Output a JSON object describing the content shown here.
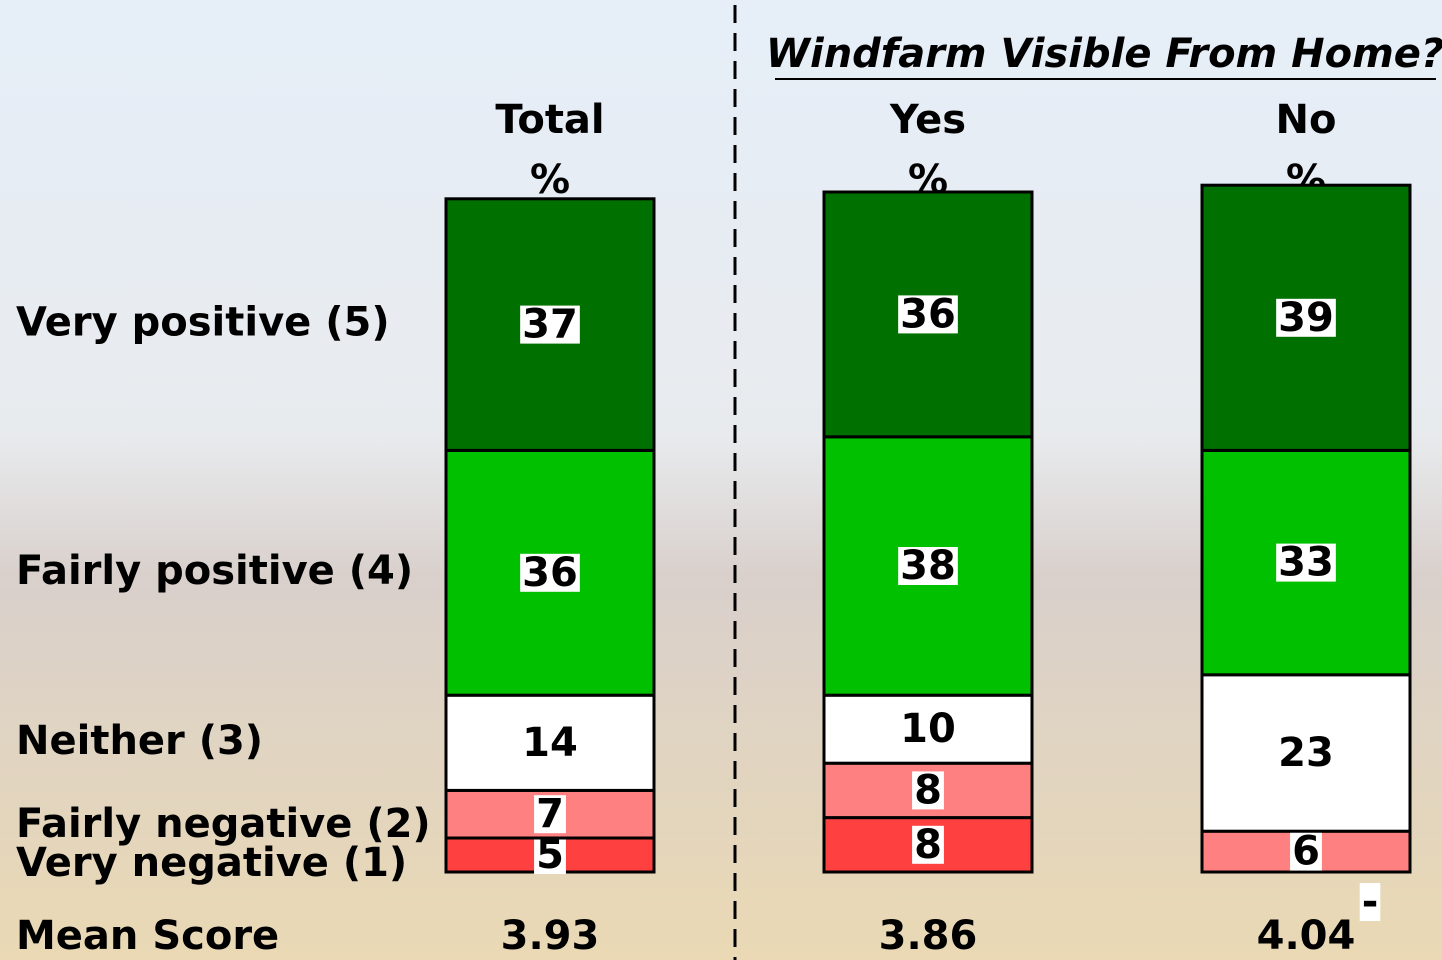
{
  "chart_data": {
    "type": "stacked_bar",
    "group_title": "Windfarm Visible From Home?",
    "categories": [
      "Total",
      "Yes",
      "No"
    ],
    "unit_labels": [
      "%",
      "%",
      "%"
    ],
    "series": [
      {
        "name": "Very positive (5)",
        "color": "#007000",
        "values": [
          37,
          36,
          39
        ]
      },
      {
        "name": "Fairly positive (4)",
        "color": "#00c000",
        "values": [
          36,
          38,
          33
        ]
      },
      {
        "name": "Neither (3)",
        "color": "#ffffff",
        "values": [
          14,
          10,
          23
        ]
      },
      {
        "name": "Fairly negative (2)",
        "color": "#ff8080",
        "values": [
          7,
          8,
          6
        ]
      },
      {
        "name": "Very negative (1)",
        "color": "#ff4040",
        "values": [
          5,
          8,
          null
        ],
        "value_labels": [
          "5",
          "8",
          "-"
        ]
      }
    ],
    "mean_label": "Mean Score",
    "mean_scores": [
      3.93,
      3.86,
      4.04
    ]
  }
}
